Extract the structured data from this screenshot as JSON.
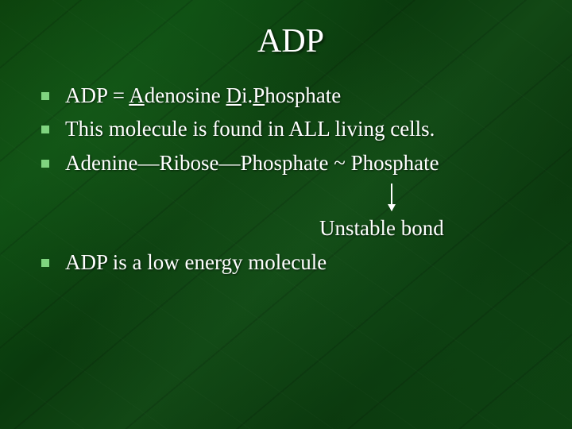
{
  "slide": {
    "title": "ADP",
    "bullets": [
      {
        "prefix": "ADP = ",
        "u1": "A",
        "mid1": "denosine ",
        "u2": "D",
        "mid2": "i.",
        "u3": "P",
        "suffix": "hosphate"
      },
      {
        "text": "This molecule is found in ALL living cells."
      },
      {
        "text": "Adenine—Ribose—Phosphate ~ Phosphate"
      }
    ],
    "unstable_label": "Unstable bond",
    "last_bullet": "ADP is a low energy molecule",
    "colors": {
      "text": "#ffffff",
      "bullet_square": "#7fd47f",
      "bg_dark": "#0a3d0a",
      "bg_light": "#124815"
    },
    "font": {
      "family": "Times New Roman",
      "title_size_pt": 32,
      "body_size_pt": 20
    }
  }
}
